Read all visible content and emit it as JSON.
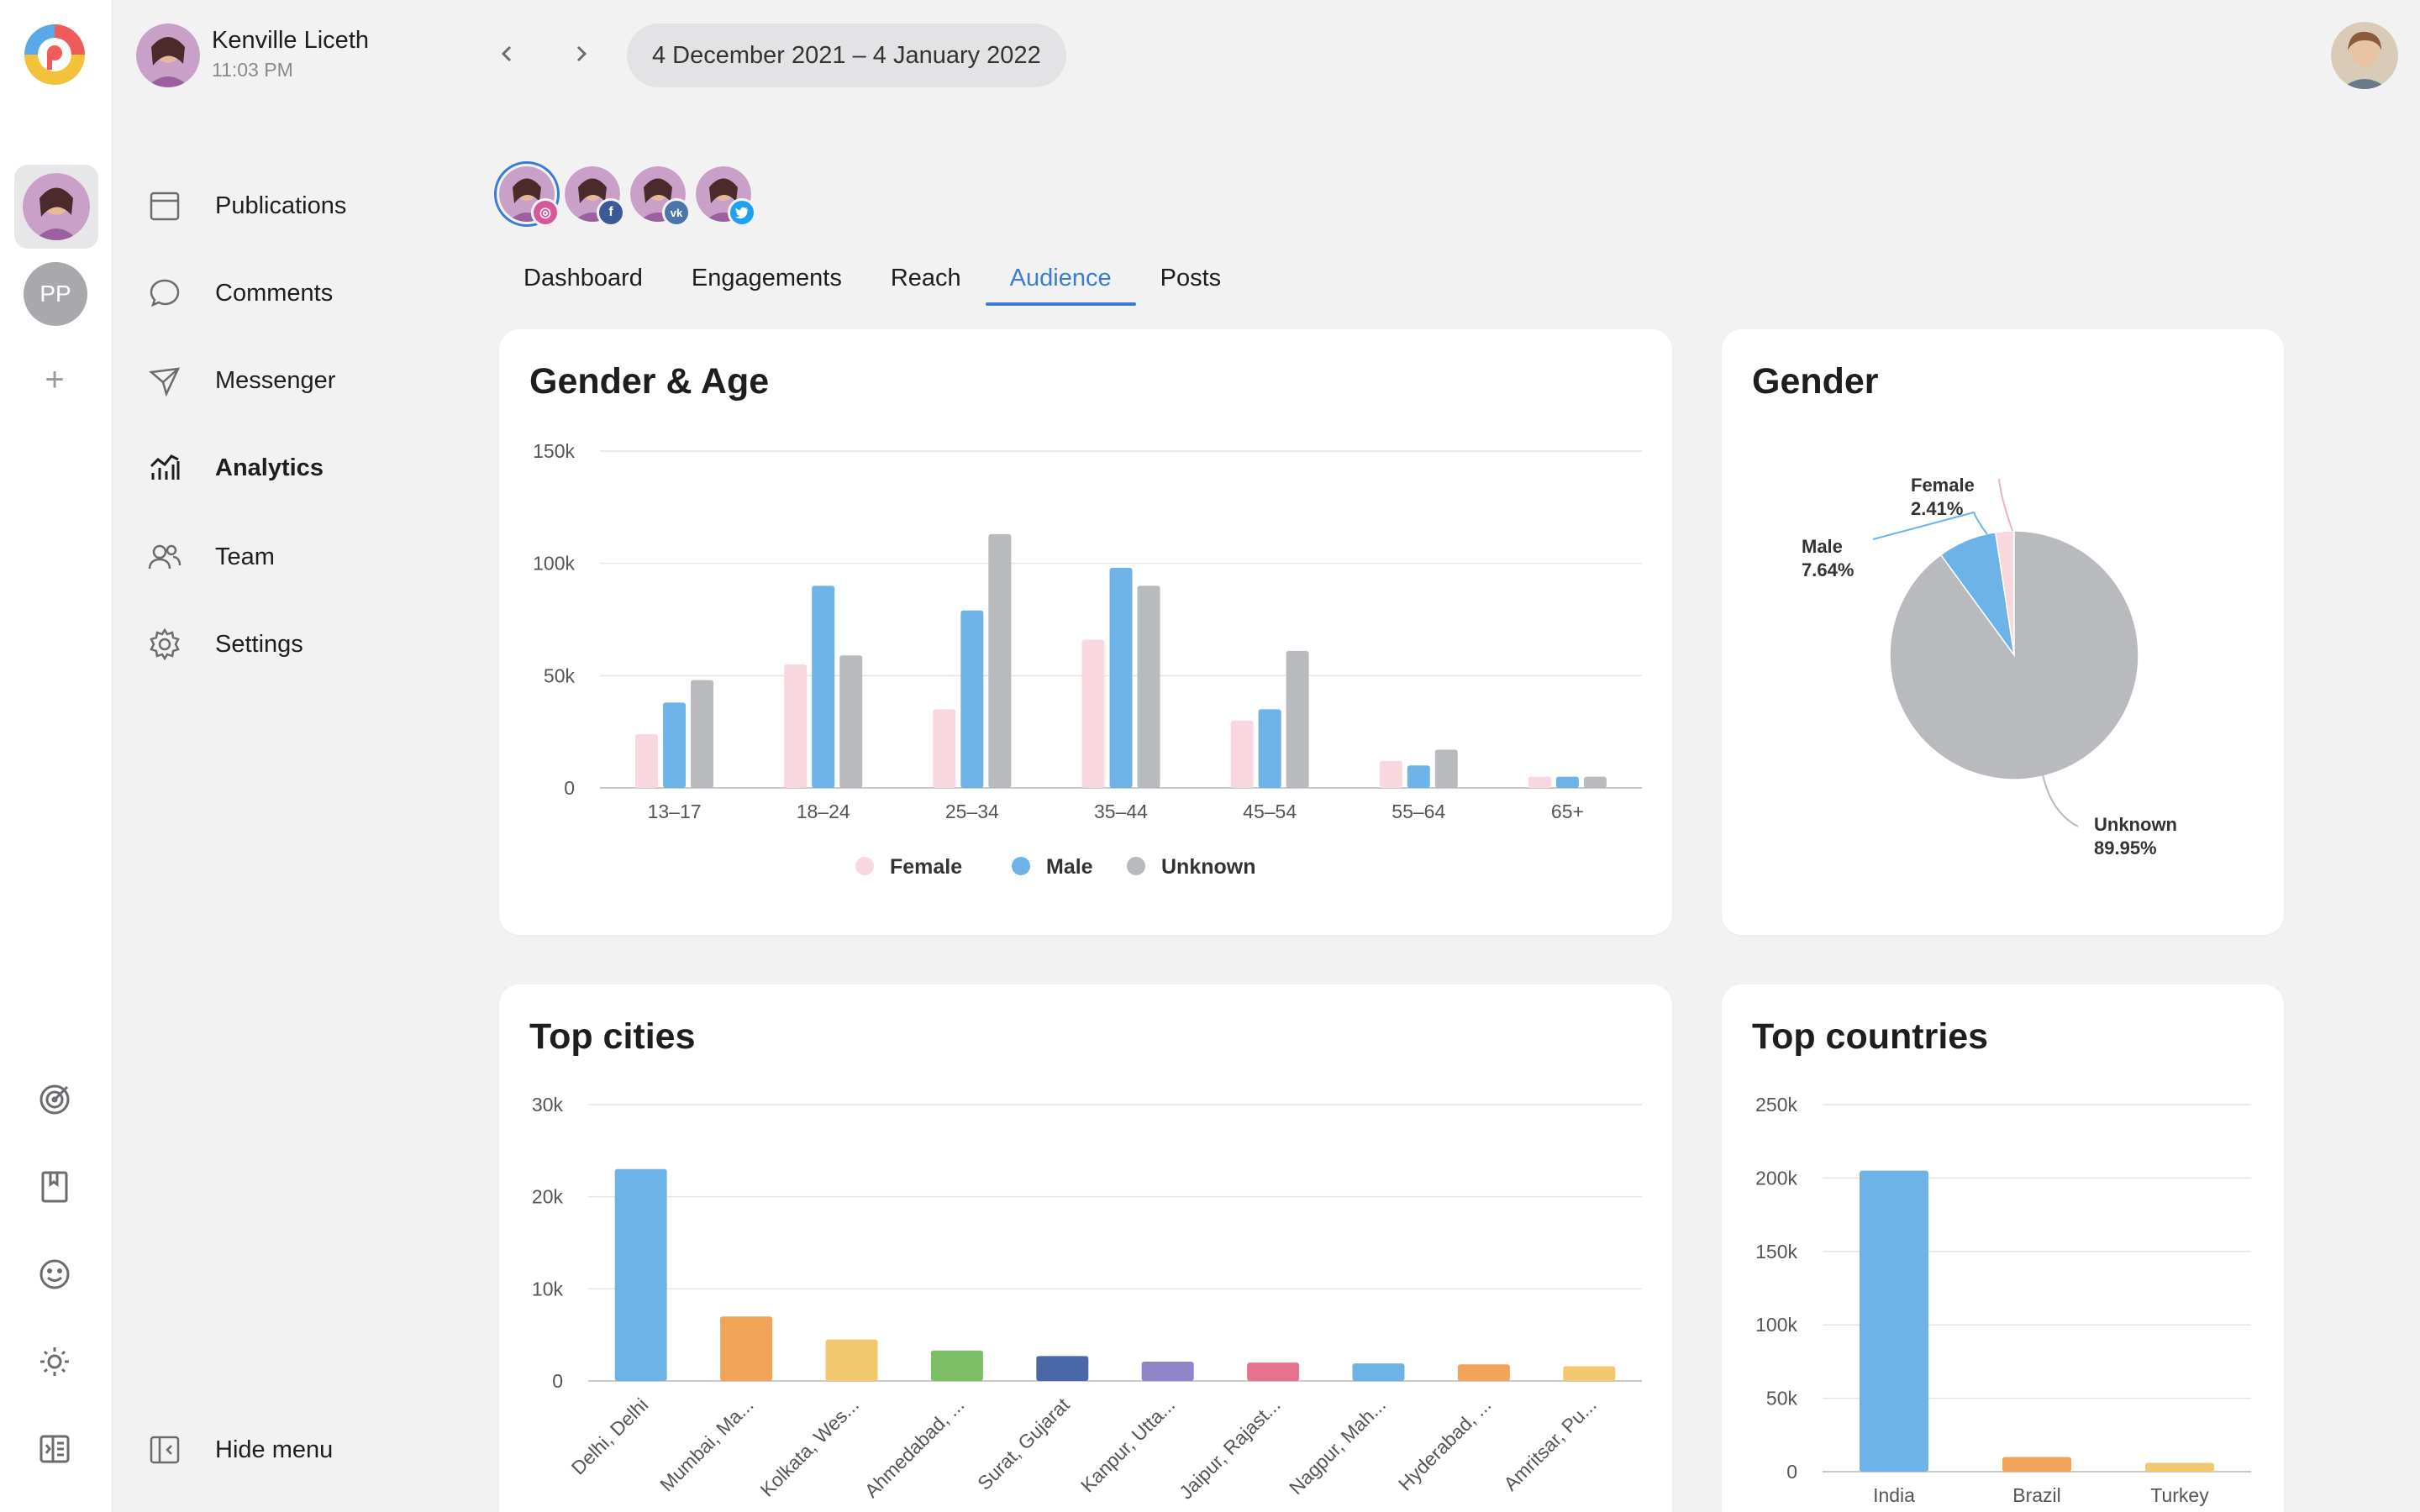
{
  "header": {
    "user_name": "Kenville Liceth",
    "user_time": "11:03 PM",
    "date_range": "4 December 2021 – 4 January 2022"
  },
  "rail": {
    "second_account_initials": "PP",
    "add_symbol": "+"
  },
  "menu": {
    "items": [
      {
        "label": "Publications",
        "icon": "calendar-icon"
      },
      {
        "label": "Comments",
        "icon": "speech-bubble-icon"
      },
      {
        "label": "Messenger",
        "icon": "paper-plane-icon"
      },
      {
        "label": "Analytics",
        "icon": "analytics-icon"
      },
      {
        "label": "Team",
        "icon": "team-icon"
      },
      {
        "label": "Settings",
        "icon": "gear-icon"
      }
    ],
    "hide_menu": "Hide menu"
  },
  "profiles": [
    {
      "network": "Instagram",
      "badge_color": "#d6589b"
    },
    {
      "network": "Facebook",
      "badge_color": "#3b5998"
    },
    {
      "network": "VK",
      "badge_color": "#4a76a8"
    },
    {
      "network": "Twitter",
      "badge_color": "#1da1f2"
    }
  ],
  "tabs": [
    "Dashboard",
    "Engagements",
    "Reach",
    "Audience",
    "Posts"
  ],
  "active_tab": "Audience",
  "colors": {
    "accent": "#3a7bd5",
    "female": "#f8d7df",
    "male": "#6db3e8",
    "unknown": "#b9babd"
  },
  "cards": {
    "gender_age_title": "Gender & Age",
    "gender_title": "Gender",
    "top_cities_title": "Top cities",
    "top_countries_title": "Top countries"
  },
  "chart_data": [
    {
      "id": "gender-age",
      "type": "bar",
      "title": "Gender & Age",
      "categories": [
        "13–17",
        "18–24",
        "25–34",
        "35–44",
        "45–54",
        "55–64",
        "65+"
      ],
      "series": [
        {
          "name": "Female",
          "color": "#f8d7df",
          "values": [
            24000,
            55000,
            35000,
            66000,
            30000,
            12000,
            5000
          ]
        },
        {
          "name": "Male",
          "color": "#6db3e8",
          "values": [
            38000,
            90000,
            79000,
            98000,
            35000,
            10000,
            5000
          ]
        },
        {
          "name": "Unknown",
          "color": "#b9babd",
          "values": [
            48000,
            59000,
            113000,
            90000,
            61000,
            17000,
            5000
          ]
        }
      ],
      "yticks": [
        "0",
        "50k",
        "100k",
        "150k"
      ],
      "ylim": [
        0,
        150000
      ],
      "grid": true,
      "legend": "bottom"
    },
    {
      "id": "gender",
      "type": "pie",
      "title": "Gender",
      "slices": [
        {
          "label": "Female",
          "percent_text": "2.41%",
          "value": 2.41,
          "color": "#f8d7df"
        },
        {
          "label": "Male",
          "percent_text": "7.64%",
          "value": 7.64,
          "color": "#6db3e8"
        },
        {
          "label": "Unknown",
          "percent_text": "89.95%",
          "value": 89.95,
          "color": "#b9babd"
        }
      ]
    },
    {
      "id": "top-cities",
      "type": "bar",
      "title": "Top cities",
      "categories": [
        "Delhi, Delhi",
        "Mumbai, Ma...",
        "Kolkata, Wes...",
        "Ahmedabad, ...",
        "Surat, Gujarat",
        "Kanpur, Utta...",
        "Jaipur, Rajast...",
        "Nagpur, Mah...",
        "Hyderabad, ...",
        "Amritsar, Pu..."
      ],
      "values": [
        23000,
        7000,
        4500,
        3300,
        2700,
        2100,
        2000,
        1900,
        1800,
        1600
      ],
      "colors": [
        "#6db3e8",
        "#f1a35a",
        "#f2c86e",
        "#7cbf66",
        "#4a68a8",
        "#8f84c9",
        "#e6738e",
        "#6db3e8",
        "#f1a35a",
        "#f2c86e"
      ],
      "yticks": [
        "0",
        "10k",
        "20k",
        "30k"
      ],
      "ylim": [
        0,
        30000
      ],
      "grid": true
    },
    {
      "id": "top-countries",
      "type": "bar",
      "title": "Top countries",
      "categories": [
        "India",
        "Brazil",
        "Turkey"
      ],
      "values": [
        205000,
        10000,
        6000
      ],
      "colors": [
        "#6db3e8",
        "#f1a35a",
        "#f2c86e"
      ],
      "yticks": [
        "0",
        "50k",
        "100k",
        "150k",
        "200k",
        "250k"
      ],
      "ylim": [
        0,
        250000
      ],
      "grid": true
    }
  ]
}
